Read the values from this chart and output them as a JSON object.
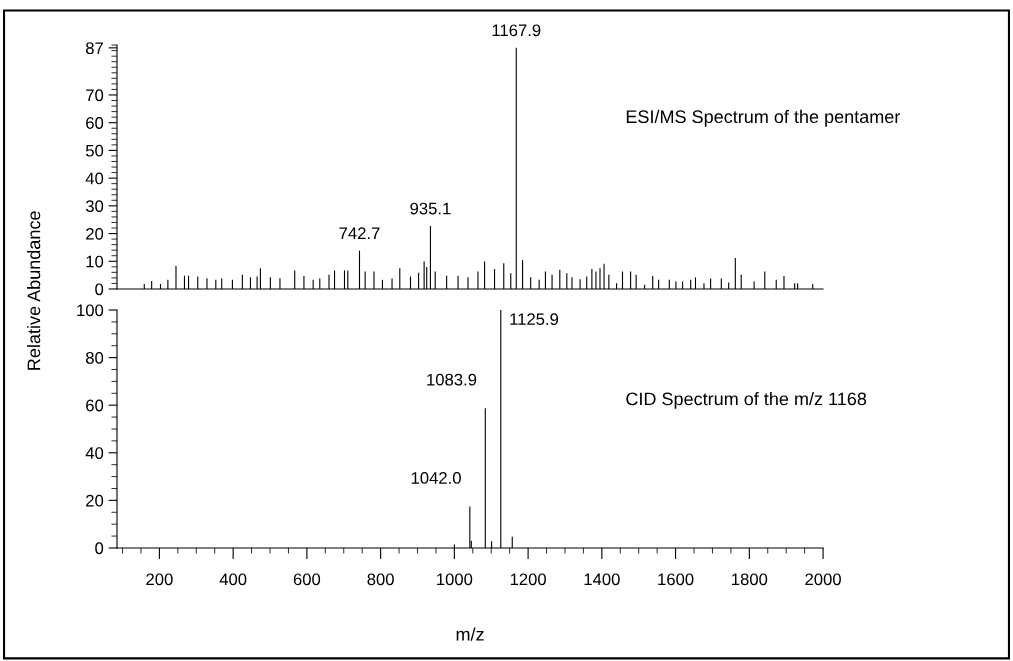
{
  "chart_data": [
    {
      "type": "bar",
      "ylabel": "Relative Abundance",
      "color": "#000000",
      "x": [
        159,
        179,
        203,
        223,
        245,
        268,
        279,
        304,
        329,
        353,
        369,
        398,
        425,
        447,
        465,
        474,
        501,
        527,
        567,
        592,
        617,
        635,
        660,
        675,
        702,
        711,
        742.7,
        758,
        782,
        805,
        831,
        852,
        881,
        903,
        918,
        925,
        935.1,
        948,
        979,
        1010,
        1037,
        1064,
        1082,
        1109,
        1134,
        1153,
        1167.9,
        1185,
        1207,
        1230,
        1247,
        1265,
        1286,
        1305,
        1319,
        1341,
        1359,
        1373,
        1384,
        1395,
        1406,
        1419,
        1440,
        1456,
        1478,
        1493,
        1516,
        1538,
        1554,
        1583,
        1601,
        1619,
        1641,
        1654,
        1677,
        1695,
        1724,
        1744,
        1762,
        1778,
        1813,
        1842,
        1873,
        1894,
        1923,
        1931,
        1972
      ],
      "values": [
        1.8,
        2.9,
        1.8,
        3.3,
        8.4,
        4.8,
        4.8,
        4.5,
        3.9,
        3.3,
        3.8,
        3.3,
        5.1,
        4.2,
        4.5,
        7.5,
        4.2,
        3.9,
        6.7,
        4.7,
        3.3,
        3.8,
        5.1,
        6.7,
        6.7,
        6.7,
        13.8,
        6.3,
        6.3,
        3.3,
        3.8,
        7.5,
        4.5,
        5.9,
        9.9,
        7.9,
        22.7,
        6.3,
        4.8,
        4.8,
        4.2,
        6.3,
        9.9,
        7.2,
        9.3,
        5.7,
        87,
        10.5,
        4.2,
        3.3,
        6.3,
        5.1,
        6.9,
        5.7,
        4.2,
        3.5,
        4.5,
        7.2,
        6.3,
        7.5,
        9.1,
        5.1,
        2.1,
        6.3,
        6.3,
        5.1,
        1.5,
        4.7,
        3.3,
        3.3,
        2.7,
        2.7,
        3.3,
        4.2,
        2.1,
        3.8,
        3.8,
        2.3,
        11.2,
        5.1,
        2.7,
        6.3,
        3.3,
        4.7,
        2.1,
        2.1,
        1.8
      ],
      "xlim": [
        85,
        2000
      ],
      "ylim": [
        0,
        88
      ],
      "yticks": [
        0,
        10,
        20,
        30,
        40,
        50,
        60,
        70,
        87
      ],
      "tick_labels": "y",
      "annotations": [
        {
          "text": "742.7",
          "x": 742.7,
          "y": 13.8
        },
        {
          "text": "935.1",
          "x": 935.1,
          "y": 22.7
        },
        {
          "text": "1167.9",
          "x": 1167.9,
          "y": 87
        },
        "ESI/MS Spectrum of the pentamer"
      ]
    },
    {
      "type": "bar",
      "xlabel": "m/z",
      "color": "#000000",
      "x": [
        1000,
        1042.0,
        1046,
        1083.9,
        1101,
        1125.9,
        1157
      ],
      "values": [
        1.5,
        17.4,
        3,
        58.7,
        2.8,
        100,
        4.7
      ],
      "xlim": [
        85,
        2000
      ],
      "ylim": [
        0,
        100
      ],
      "xticks": [
        200,
        400,
        600,
        800,
        1000,
        1200,
        1400,
        1600,
        1800,
        2000
      ],
      "yticks": [
        0,
        20,
        40,
        60,
        80,
        100
      ],
      "annotations": [
        {
          "text": "1042.0",
          "x": 1042.0,
          "y": 17.4
        },
        {
          "text": "1083.9",
          "x": 1083.9,
          "y": 58.7
        },
        {
          "text": "1125.9",
          "x": 1125.9,
          "y": 100
        },
        "CID Spectrum of the m/z 1168"
      ]
    }
  ]
}
